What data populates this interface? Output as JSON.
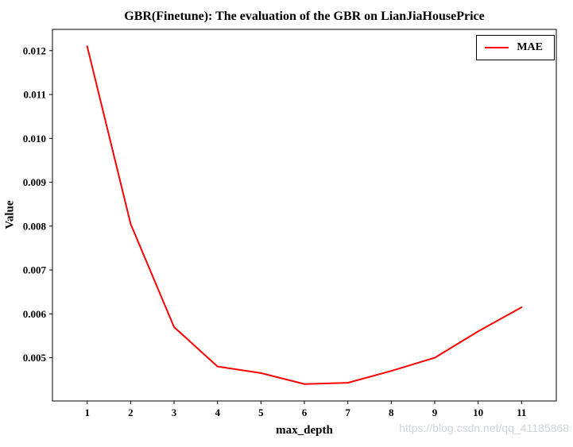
{
  "watermark": "https://blog.csdn.net/qq_41185868",
  "chart_data": {
    "type": "line",
    "title": "GBR(Finetune): The evaluation of the GBR on LianJiaHousePrice",
    "xlabel": "max_depth",
    "ylabel": "Value",
    "x": [
      1,
      2,
      3,
      4,
      5,
      6,
      7,
      8,
      9,
      10,
      11
    ],
    "series": [
      {
        "name": "MAE",
        "color": "#ff0000",
        "values": [
          0.0121,
          0.00805,
          0.0057,
          0.0048,
          0.00465,
          0.0044,
          0.00443,
          0.0047,
          0.005,
          0.0056,
          0.00615
        ]
      }
    ],
    "xticks": [
      1,
      2,
      3,
      4,
      5,
      6,
      7,
      8,
      9,
      10,
      11
    ],
    "yticks": [
      0.005,
      0.006,
      0.007,
      0.008,
      0.009,
      0.01,
      0.011,
      0.012
    ],
    "ytick_labels": [
      "0.005",
      "0.006",
      "0.007",
      "0.008",
      "0.009",
      "0.010",
      "0.011",
      "0.012"
    ],
    "xlim": [
      0.2,
      11.8
    ],
    "ylim": [
      0.004015,
      0.012485
    ],
    "grid": false,
    "legend_position": "upper right"
  }
}
